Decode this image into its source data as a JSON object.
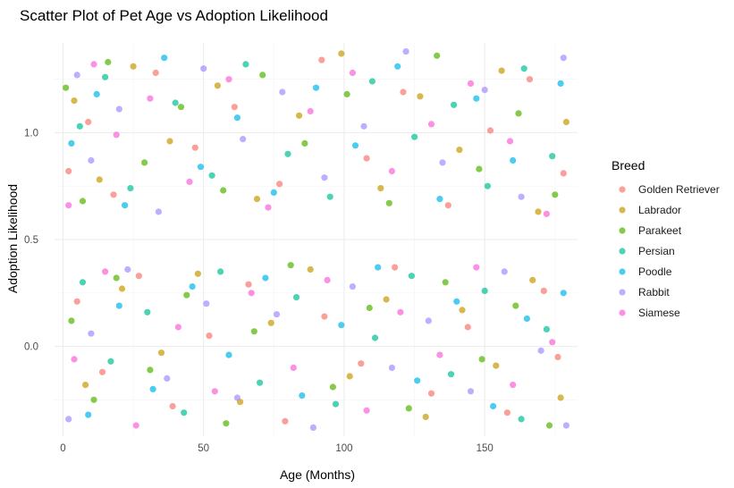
{
  "chart_data": {
    "type": "scatter",
    "title": "Scatter Plot of Pet Age vs Adoption Likelihood",
    "xlabel": "Age (Months)",
    "ylabel": "Adoption Likelihood",
    "xlim": [
      -3,
      183
    ],
    "ylim": [
      -0.42,
      1.42
    ],
    "xticks": [
      0,
      50,
      100,
      150
    ],
    "xtick_labels": [
      "0",
      "50",
      "100",
      "150"
    ],
    "yticks": [
      0.0,
      0.5,
      1.0
    ],
    "ytick_labels": [
      "0.0",
      "0.5",
      "1.0"
    ],
    "grid": true,
    "legend": {
      "title": "Breed",
      "placement": "right",
      "entries": [
        "Golden Retriever",
        "Labrador",
        "Parakeet",
        "Persian",
        "Poodle",
        "Rabbit",
        "Siamese"
      ]
    },
    "colors": {
      "Golden Retriever": "#F8766D",
      "Labrador": "#C49A00",
      "Parakeet": "#53B400",
      "Persian": "#00C094",
      "Poodle": "#00B6EB",
      "Rabbit": "#A58AFF",
      "Siamese": "#FB61D7"
    },
    "series": [
      {
        "name": "Golden Retriever",
        "values": [
          [
            2,
            0.82
          ],
          [
            9,
            1.05
          ],
          [
            18,
            0.71
          ],
          [
            33,
            1.28
          ],
          [
            47,
            0.93
          ],
          [
            61,
            1.12
          ],
          [
            77,
            0.76
          ],
          [
            92,
            1.34
          ],
          [
            108,
            0.88
          ],
          [
            121,
            1.19
          ],
          [
            137,
            0.66
          ],
          [
            152,
            1.01
          ],
          [
            166,
            1.25
          ],
          [
            178,
            0.81
          ],
          [
            5,
            0.21
          ],
          [
            14,
            -0.12
          ],
          [
            27,
            0.33
          ],
          [
            39,
            -0.28
          ],
          [
            52,
            0.05
          ],
          [
            66,
            0.29
          ],
          [
            79,
            -0.35
          ],
          [
            93,
            0.14
          ],
          [
            106,
            -0.08
          ],
          [
            118,
            0.37
          ],
          [
            131,
            -0.22
          ],
          [
            144,
            0.09
          ],
          [
            158,
            -0.31
          ],
          [
            171,
            0.26
          ],
          [
            176,
            -0.05
          ]
        ]
      },
      {
        "name": "Labrador",
        "values": [
          [
            4,
            1.15
          ],
          [
            13,
            0.78
          ],
          [
            25,
            1.31
          ],
          [
            38,
            0.96
          ],
          [
            55,
            1.22
          ],
          [
            69,
            0.69
          ],
          [
            84,
            1.08
          ],
          [
            99,
            1.37
          ],
          [
            113,
            0.74
          ],
          [
            127,
            1.17
          ],
          [
            141,
            0.92
          ],
          [
            156,
            1.29
          ],
          [
            169,
            0.63
          ],
          [
            179,
            1.05
          ],
          [
            8,
            -0.18
          ],
          [
            21,
            0.27
          ],
          [
            35,
            -0.03
          ],
          [
            48,
            0.34
          ],
          [
            63,
            -0.26
          ],
          [
            74,
            0.11
          ],
          [
            88,
            0.36
          ],
          [
            102,
            -0.14
          ],
          [
            115,
            0.22
          ],
          [
            129,
            -0.33
          ],
          [
            142,
            0.17
          ],
          [
            154,
            -0.09
          ],
          [
            167,
            0.31
          ],
          [
            177,
            -0.24
          ]
        ]
      },
      {
        "name": "Parakeet",
        "values": [
          [
            1,
            1.21
          ],
          [
            7,
            0.68
          ],
          [
            16,
            1.33
          ],
          [
            29,
            0.86
          ],
          [
            42,
            1.12
          ],
          [
            57,
            0.73
          ],
          [
            71,
            1.27
          ],
          [
            86,
            0.95
          ],
          [
            101,
            1.18
          ],
          [
            116,
            0.67
          ],
          [
            133,
            1.36
          ],
          [
            148,
            0.83
          ],
          [
            162,
            1.09
          ],
          [
            175,
            0.71
          ],
          [
            3,
            0.12
          ],
          [
            11,
            -0.25
          ],
          [
            19,
            0.32
          ],
          [
            31,
            -0.11
          ],
          [
            44,
            0.24
          ],
          [
            58,
            -0.36
          ],
          [
            68,
            0.07
          ],
          [
            81,
            0.38
          ],
          [
            96,
            -0.19
          ],
          [
            109,
            0.18
          ],
          [
            123,
            -0.29
          ],
          [
            136,
            0.3
          ],
          [
            149,
            -0.06
          ],
          [
            161,
            0.19
          ],
          [
            173,
            -0.37
          ]
        ]
      },
      {
        "name": "Persian",
        "values": [
          [
            6,
            1.03
          ],
          [
            15,
            1.26
          ],
          [
            24,
            0.74
          ],
          [
            40,
            1.14
          ],
          [
            53,
            0.8
          ],
          [
            65,
            1.32
          ],
          [
            80,
            0.9
          ],
          [
            95,
            0.7
          ],
          [
            110,
            1.24
          ],
          [
            125,
            0.98
          ],
          [
            139,
            1.13
          ],
          [
            151,
            0.75
          ],
          [
            164,
            1.3
          ],
          [
            174,
            0.89
          ],
          [
            7,
            0.3
          ],
          [
            17,
            -0.07
          ],
          [
            30,
            0.16
          ],
          [
            43,
            -0.31
          ],
          [
            56,
            0.35
          ],
          [
            70,
            -0.17
          ],
          [
            83,
            0.23
          ],
          [
            97,
            -0.27
          ],
          [
            111,
            0.04
          ],
          [
            124,
            0.33
          ],
          [
            138,
            -0.13
          ],
          [
            150,
            0.26
          ],
          [
            163,
            -0.34
          ],
          [
            172,
            0.08
          ]
        ]
      },
      {
        "name": "Poodle",
        "values": [
          [
            3,
            0.95
          ],
          [
            12,
            1.18
          ],
          [
            22,
            0.66
          ],
          [
            36,
            1.35
          ],
          [
            49,
            0.84
          ],
          [
            62,
            1.07
          ],
          [
            75,
            0.72
          ],
          [
            90,
            1.21
          ],
          [
            104,
            0.94
          ],
          [
            119,
            1.31
          ],
          [
            134,
            0.69
          ],
          [
            147,
            1.16
          ],
          [
            160,
            0.87
          ],
          [
            177,
            1.23
          ],
          [
            9,
            -0.32
          ],
          [
            20,
            0.19
          ],
          [
            32,
            -0.2
          ],
          [
            46,
            0.28
          ],
          [
            59,
            -0.04
          ],
          [
            72,
            0.32
          ],
          [
            85,
            -0.23
          ],
          [
            99,
            0.1
          ],
          [
            112,
            0.37
          ],
          [
            126,
            -0.16
          ],
          [
            140,
            0.21
          ],
          [
            153,
            -0.28
          ],
          [
            165,
            0.13
          ],
          [
            178,
            0.25
          ]
        ]
      },
      {
        "name": "Rabbit",
        "values": [
          [
            5,
            1.27
          ],
          [
            10,
            0.87
          ],
          [
            20,
            1.11
          ],
          [
            34,
            0.63
          ],
          [
            50,
            1.3
          ],
          [
            64,
            0.97
          ],
          [
            78,
            1.19
          ],
          [
            93,
            0.79
          ],
          [
            107,
            1.03
          ],
          [
            122,
            1.38
          ],
          [
            135,
            0.86
          ],
          [
            150,
            1.2
          ],
          [
            163,
            0.7
          ],
          [
            178,
            1.35
          ],
          [
            2,
            -0.34
          ],
          [
            10,
            0.06
          ],
          [
            23,
            0.36
          ],
          [
            37,
            -0.15
          ],
          [
            51,
            0.2
          ],
          [
            62,
            -0.24
          ],
          [
            76,
            0.15
          ],
          [
            89,
            -0.38
          ],
          [
            103,
            0.28
          ],
          [
            117,
            -0.1
          ],
          [
            130,
            0.12
          ],
          [
            145,
            -0.21
          ],
          [
            157,
            0.35
          ],
          [
            170,
            -0.02
          ],
          [
            179,
            -0.37
          ]
        ]
      },
      {
        "name": "Siamese",
        "values": [
          [
            2,
            0.66
          ],
          [
            11,
            1.32
          ],
          [
            19,
            0.99
          ],
          [
            31,
            1.16
          ],
          [
            45,
            0.77
          ],
          [
            59,
            1.25
          ],
          [
            73,
            0.65
          ],
          [
            88,
            1.1
          ],
          [
            103,
            1.28
          ],
          [
            117,
            0.82
          ],
          [
            131,
            1.04
          ],
          [
            145,
            1.23
          ],
          [
            159,
            0.96
          ],
          [
            172,
            0.62
          ],
          [
            4,
            -0.06
          ],
          [
            15,
            0.35
          ],
          [
            26,
            -0.37
          ],
          [
            41,
            0.09
          ],
          [
            54,
            -0.21
          ],
          [
            67,
            0.25
          ],
          [
            82,
            -0.1
          ],
          [
            94,
            0.31
          ],
          [
            108,
            -0.3
          ],
          [
            120,
            0.16
          ],
          [
            134,
            -0.04
          ],
          [
            147,
            0.37
          ],
          [
            160,
            -0.18
          ],
          [
            174,
            0.02
          ]
        ]
      }
    ]
  }
}
